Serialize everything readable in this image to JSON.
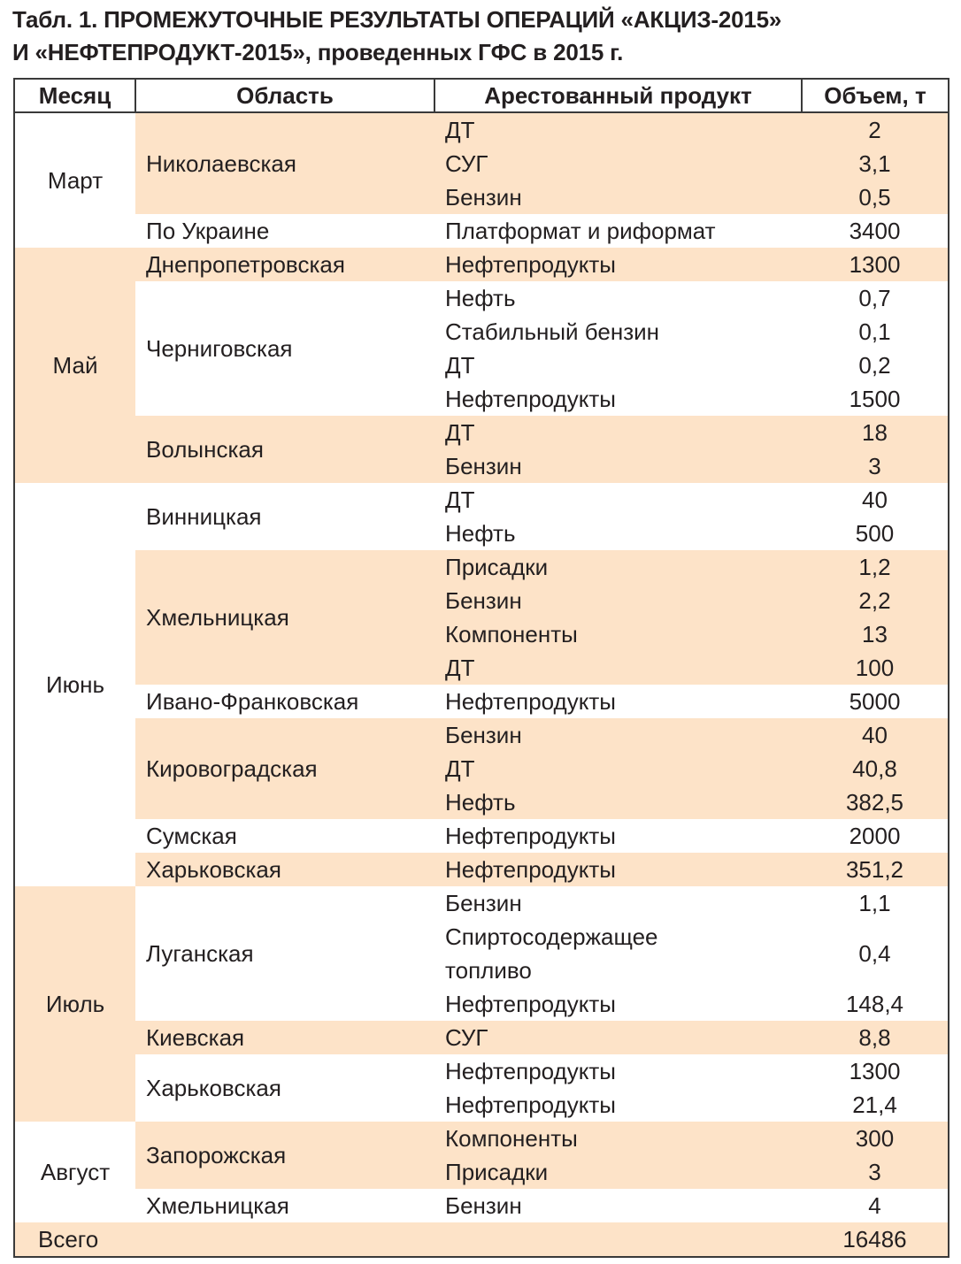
{
  "title": {
    "line1": "Табл. 1. ПРОМЕЖУТОЧНЫЕ РЕЗУЛЬТАТЫ ОПЕРАЦИЙ «АКЦИЗ-2015»",
    "line2": "И «НЕФТЕПРОДУКТ-2015», проведенных ГФС в 2015 г."
  },
  "headers": [
    "Месяц",
    "Область",
    "Арестованный продукт",
    "Объем, т"
  ],
  "colors": {
    "shade": "#fde3c8",
    "border": "#3a3a3a",
    "text": "#231f20"
  },
  "months": [
    {
      "name": "Март",
      "regions": [
        {
          "name": "Николаевская",
          "items": [
            {
              "product": "ДТ",
              "volume": "2"
            },
            {
              "product": "СУГ",
              "volume": "3,1"
            },
            {
              "product": "Бензин",
              "volume": "0,5"
            }
          ]
        },
        {
          "name": "По Украине",
          "items": [
            {
              "product": "Платформат и риформат",
              "volume": "3400"
            }
          ]
        }
      ]
    },
    {
      "name": "Май",
      "regions": [
        {
          "name": "Днепропетровская",
          "items": [
            {
              "product": "Нефтепродукты",
              "volume": "1300"
            }
          ]
        },
        {
          "name": "Черниговская",
          "items": [
            {
              "product": "Нефть",
              "volume": "0,7"
            },
            {
              "product": "Стабильный бензин",
              "volume": "0,1"
            },
            {
              "product": "ДТ",
              "volume": "0,2"
            },
            {
              "product": "Нефтепродукты",
              "volume": "1500"
            }
          ]
        },
        {
          "name": "Волынская",
          "items": [
            {
              "product": "ДТ",
              "volume": "18"
            },
            {
              "product": "Бензин",
              "volume": "3"
            }
          ]
        }
      ]
    },
    {
      "name": "Июнь",
      "regions": [
        {
          "name": "Винницкая",
          "items": [
            {
              "product": "ДТ",
              "volume": "40"
            },
            {
              "product": "Нефть",
              "volume": "500"
            }
          ]
        },
        {
          "name": "Хмельницкая",
          "items": [
            {
              "product": "Присадки",
              "volume": "1,2"
            },
            {
              "product": "Бензин",
              "volume": "2,2"
            },
            {
              "product": "Компоненты",
              "volume": "13"
            },
            {
              "product": "ДТ",
              "volume": "100"
            }
          ]
        },
        {
          "name": "Ивано-Франковская",
          "items": [
            {
              "product": "Нефтепродукты",
              "volume": "5000"
            }
          ]
        },
        {
          "name": "Кировоградская",
          "items": [
            {
              "product": "Бензин",
              "volume": "40"
            },
            {
              "product": "ДТ",
              "volume": "40,8"
            },
            {
              "product": "Нефть",
              "volume": "382,5"
            }
          ]
        },
        {
          "name": "Сумская",
          "items": [
            {
              "product": "Нефтепродукты",
              "volume": "2000"
            }
          ]
        },
        {
          "name": "Харьковская",
          "items": [
            {
              "product": "Нефтепродукты",
              "volume": "351,2"
            }
          ]
        }
      ]
    },
    {
      "name": "Июль",
      "regions": [
        {
          "name": "Луганская",
          "items": [
            {
              "product": "Бензин",
              "volume": "1,1"
            },
            {
              "product": "Спиртосодержащее топливо",
              "volume": "0,4"
            },
            {
              "product": "Нефтепродукты",
              "volume": "148,4"
            }
          ]
        },
        {
          "name": "Киевская",
          "items": [
            {
              "product": "СУГ",
              "volume": "8,8"
            }
          ]
        },
        {
          "name": "Харьковская",
          "items": [
            {
              "product": "Нефтепродукты",
              "volume": "1300"
            },
            {
              "product": "Нефтепродукты",
              "volume": "21,4"
            }
          ]
        }
      ]
    },
    {
      "name": "Август",
      "regions": [
        {
          "name": "Запорожская",
          "items": [
            {
              "product": "Компоненты",
              "volume": "300"
            },
            {
              "product": "Присадки",
              "volume": "3"
            }
          ]
        },
        {
          "name": "Хмельницкая",
          "items": [
            {
              "product": "Бензин",
              "volume": "4"
            }
          ]
        }
      ]
    }
  ],
  "total": {
    "label": "Всего",
    "volume": "16486"
  }
}
